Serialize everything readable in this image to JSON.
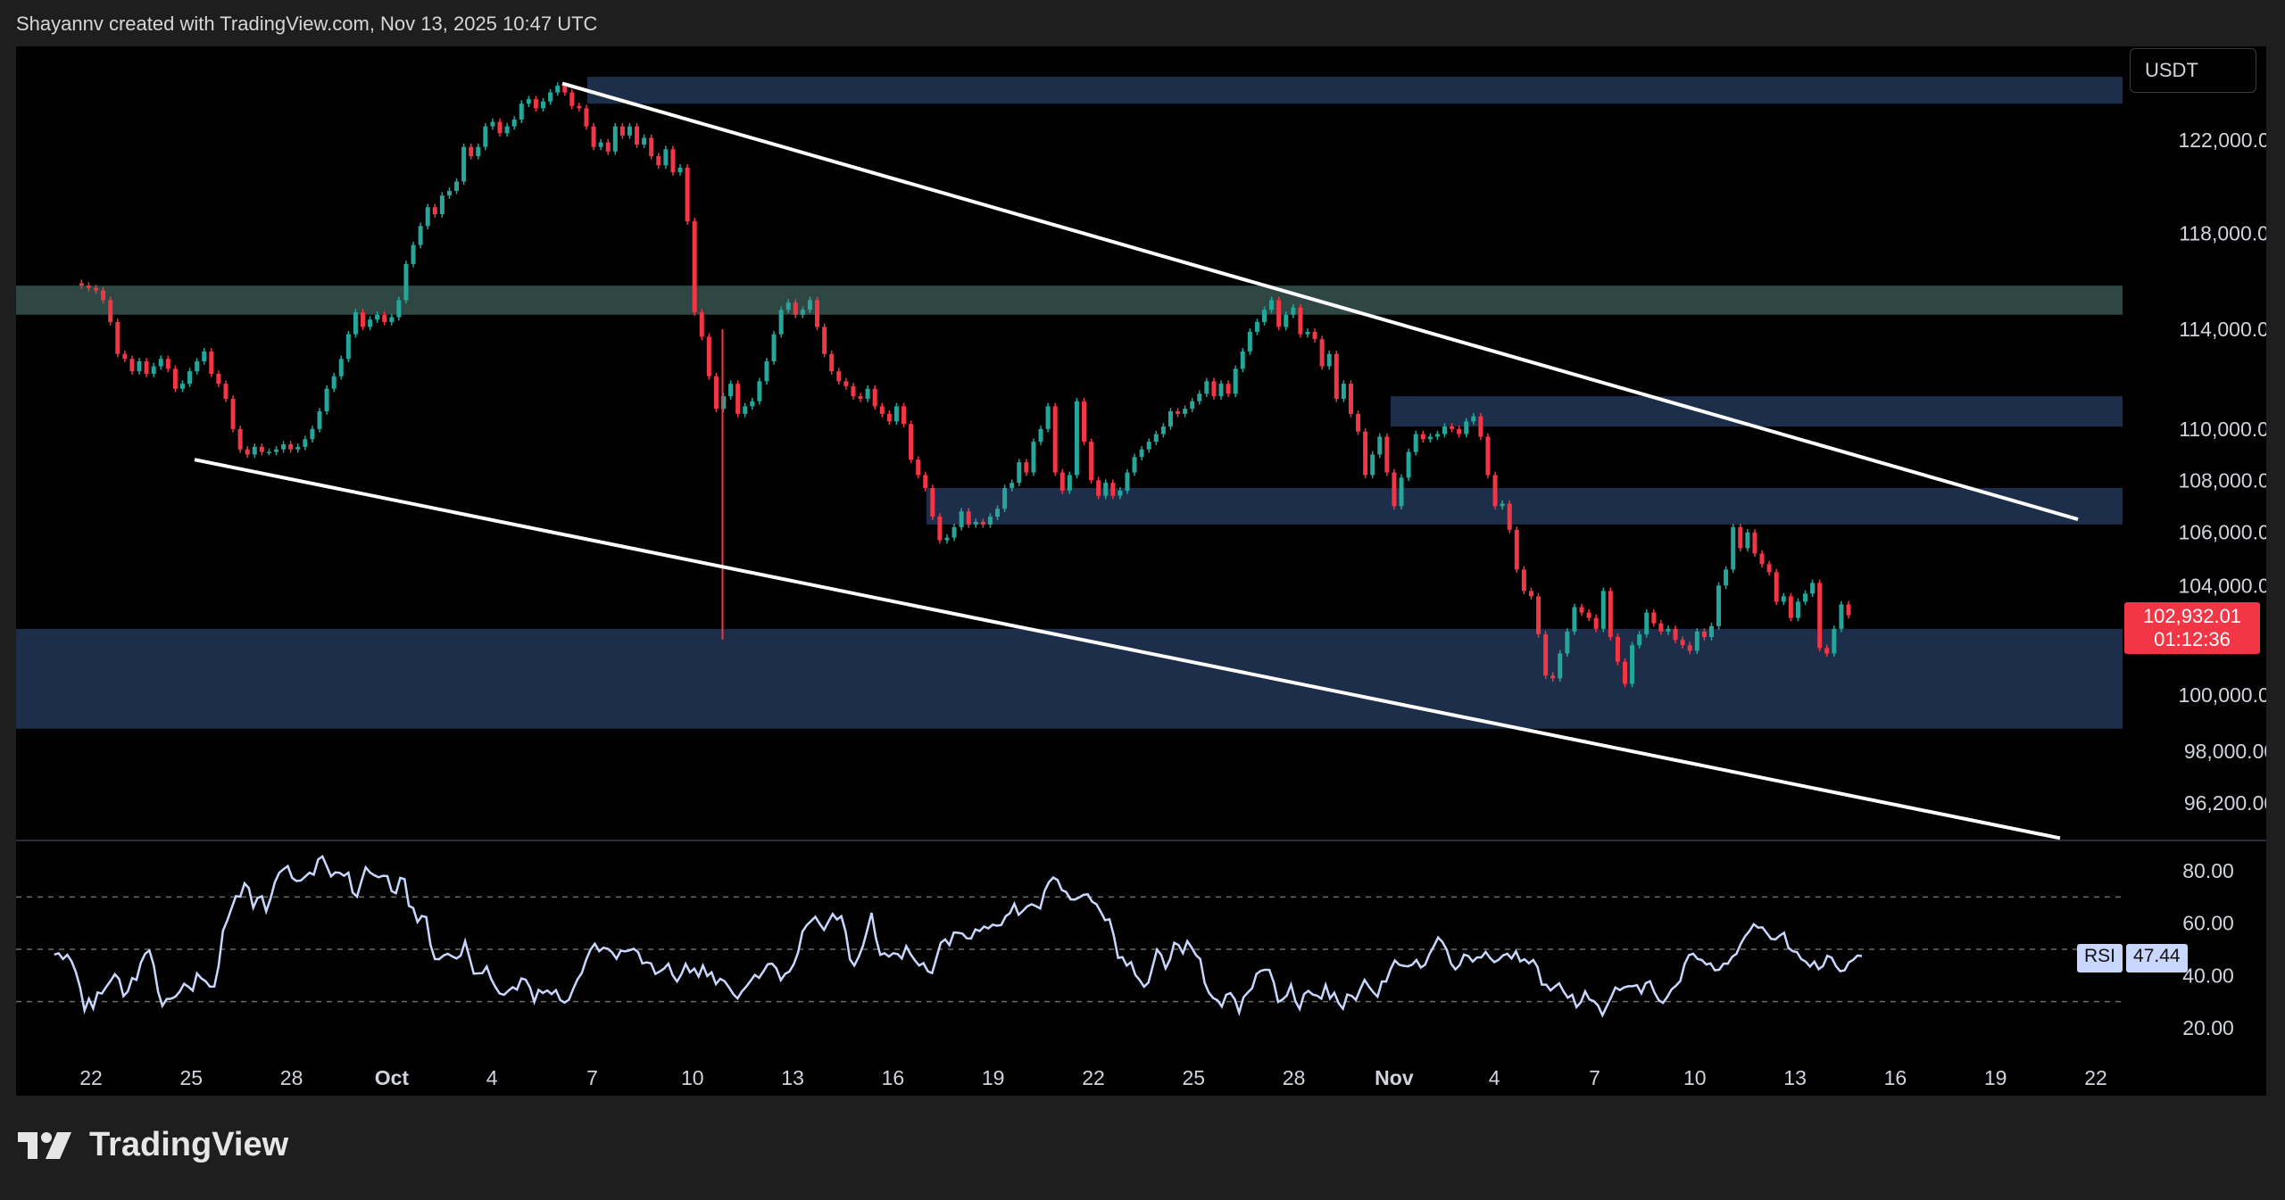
{
  "attribution": "Shayannv created with TradingView.com, Nov 13, 2025 10:47 UTC",
  "brand": {
    "name": "TradingView",
    "logo_icon": "tradingview-logo-icon"
  },
  "currency_label": "USDT",
  "last_price": {
    "value": "102,932.01",
    "countdown": "01:12:36"
  },
  "rsi": {
    "label": "RSI",
    "value": "47.44"
  },
  "colors": {
    "up": "#26a69a",
    "down": "#f23645",
    "zone": "#1c2e4a",
    "zone_top": "#2e4742",
    "trendline": "#ffffff",
    "rsi_line": "#c9d7ff"
  },
  "chart_data": [
    {
      "type": "candlestick",
      "title": "",
      "price_axis": {
        "ylim": [
          95000,
          124500
        ],
        "ticks": [
          "122,000.00",
          "118,000.00",
          "114,000.00",
          "110,000.00",
          "108,000.00",
          "106,000.00",
          "104,000.00",
          "100,000.00",
          "98,000.00",
          "96,200.00"
        ]
      },
      "x_axis": {
        "ticks": [
          "22",
          "25",
          "28",
          "Oct",
          "4",
          "7",
          "10",
          "13",
          "16",
          "19",
          "22",
          "25",
          "28",
          "Nov",
          "4",
          "7",
          "10",
          "13",
          "16",
          "19",
          "22"
        ],
        "month_ticks": [
          "Oct",
          "Nov"
        ]
      },
      "zones": [
        {
          "from": 123600,
          "to": 124800,
          "kind": "supply"
        },
        {
          "from": 114600,
          "to": 115800,
          "kind": "resistance"
        },
        {
          "from": 110100,
          "to": 111300,
          "kind": "supply"
        },
        {
          "from": 106300,
          "to": 107700,
          "kind": "supply"
        },
        {
          "from": 98800,
          "to": 102400,
          "kind": "demand"
        }
      ],
      "trendlines": [
        {
          "from": [
            "Oct 7",
            124500
          ],
          "to": [
            "Nov 20",
            106500
          ],
          "kind": "descending-resistance"
        },
        {
          "from": [
            "Sep 26",
            108800
          ],
          "to": [
            "Nov 20",
            95000
          ],
          "kind": "descending-support"
        }
      ],
      "closes": [
        115900,
        115800,
        115700,
        115600,
        115200,
        114300,
        113000,
        112800,
        112300,
        112700,
        112200,
        112500,
        112800,
        112400,
        111600,
        111800,
        112300,
        112700,
        113100,
        112200,
        111800,
        111200,
        110000,
        109200,
        109000,
        109300,
        109100,
        109100,
        109200,
        109400,
        109200,
        109300,
        109600,
        110000,
        110700,
        111600,
        112100,
        112800,
        113800,
        114700,
        114100,
        114400,
        114600,
        114300,
        114500,
        115200,
        116700,
        117500,
        118300,
        119100,
        118800,
        119600,
        119800,
        120200,
        121700,
        121300,
        121700,
        122600,
        122800,
        122300,
        122600,
        122900,
        123600,
        123800,
        123400,
        123700,
        124100,
        124400,
        124100,
        123500,
        123400,
        122600,
        121700,
        121900,
        121500,
        122600,
        122200,
        122600,
        121800,
        122100,
        121300,
        120900,
        121600,
        120600,
        120800,
        118500,
        114700,
        113700,
        112100,
        110800,
        111300,
        111800,
        110600,
        110900,
        111100,
        111900,
        112700,
        113800,
        114800,
        115100,
        114600,
        114800,
        115200,
        114100,
        113000,
        112300,
        111900,
        111700,
        111300,
        111200,
        111600,
        110900,
        110600,
        110300,
        110900,
        110200,
        108800,
        108200,
        107700,
        106600,
        105700,
        105800,
        106200,
        106800,
        106300,
        106400,
        106300,
        106600,
        106900,
        107700,
        107900,
        108700,
        108300,
        109500,
        110000,
        110900,
        108300,
        107600,
        108200,
        111100,
        109500,
        108000,
        107400,
        107900,
        107400,
        107600,
        108300,
        108900,
        109200,
        109500,
        109800,
        110100,
        110700,
        110600,
        110800,
        111100,
        111400,
        111900,
        111300,
        111800,
        111400,
        112400,
        113100,
        113900,
        114300,
        114800,
        115200,
        114100,
        114600,
        114900,
        113800,
        113900,
        113600,
        112500,
        113000,
        111200,
        111800,
        110600,
        109900,
        108200,
        109000,
        109700,
        108300,
        107000,
        108100,
        109100,
        109800,
        109600,
        109700,
        109800,
        110100,
        110000,
        109800,
        110300,
        110500,
        109700,
        108200,
        107000,
        107100,
        106100,
        104600,
        103800,
        103600,
        102200,
        100700,
        100600,
        101500,
        102300,
        103200,
        103000,
        102800,
        102400,
        103800,
        102100,
        101200,
        100400,
        101800,
        102200,
        103000,
        102600,
        102300,
        102400,
        102000,
        101800,
        101600,
        102300,
        102100,
        102500,
        104000,
        104600,
        106200,
        105400,
        106000,
        105200,
        104800,
        104500,
        103400,
        103600,
        102800,
        103400,
        103700,
        104100,
        101700,
        101500,
        102400,
        103300,
        102900
      ]
    },
    {
      "type": "line",
      "title": "",
      "series": [
        {
          "name": "RSI",
          "values": [
            48.0,
            48.5,
            46.3,
            47.9,
            45.4,
            41.3,
            35.2,
            26.6,
            31.1,
            27.4,
            33.5,
            33.1,
            35.6,
            37.9,
            40.5,
            38.6,
            32.1,
            33.9,
            39.0,
            38.3,
            44.8,
            48.3,
            49.6,
            43.8,
            33.8,
            28.4,
            31.0,
            31.1,
            31.9,
            33.8,
            36.8,
            35.7,
            34.2,
            40.8,
            38.9,
            37.8,
            35.7,
            35.8,
            43.6,
            57.1,
            61.0,
            65.8,
            70.3,
            70.1,
            75.2,
            73.4,
            65.9,
            69.6,
            70.3,
            64.5,
            69.4,
            75.6,
            79.2,
            80.6,
            81.8,
            77.3,
            76.1,
            76.3,
            77.7,
            79.3,
            78.5,
            84.3,
            85.5,
            81.8,
            77.9,
            79.4,
            79.2,
            78.1,
            79.3,
            71.7,
            70.1,
            75.9,
            81.3,
            79.4,
            78.3,
            77.5,
            78.1,
            78.0,
            72.3,
            71.4,
            77.3,
            76.8,
            66.6,
            65.8,
            60.4,
            62.7,
            62.3,
            51.7,
            46.3,
            46.2,
            47.6,
            48.3,
            47.3,
            46.5,
            47.6,
            53.1,
            47.0,
            40.7,
            40.8,
            40.9,
            43.4,
            38.7,
            35.6,
            33.1,
            32.6,
            34.1,
            35.5,
            34.6,
            38.9,
            38.4,
            35.4,
            29.9,
            34.5,
            33.3,
            34.3,
            32.9,
            34.4,
            30.6,
            29.6,
            30.7,
            34.9,
            38.5,
            41.0,
            46.0,
            49.9,
            52.1,
            49.3,
            50.6,
            50.2,
            48.8,
            46.4,
            49.5,
            49.2,
            49.6,
            50.2,
            48.9,
            44.6,
            45.0,
            44.6,
            40.6,
            41.5,
            42.6,
            44.5,
            40.1,
            37.7,
            40.4,
            44.4,
            41.2,
            42.6,
            39.6,
            43.8,
            39.8,
            41.2,
            36.7,
            38.7,
            37.8,
            35.5,
            32.9,
            31.2,
            33.9,
            35.7,
            37.9,
            40.2,
            39.1,
            41.6,
            44.3,
            44.5,
            42.6,
            38.2,
            40.6,
            41.5,
            44.3,
            48.7,
            56.7,
            59.2,
            60.8,
            62.4,
            59.7,
            57.4,
            60.5,
            63.5,
            61.4,
            62.6,
            56.7,
            46.1,
            43.8,
            47.1,
            51.3,
            57.5,
            63.9,
            54.3,
            47.9,
            48.5,
            47.2,
            48.5,
            48.2,
            46.5,
            51.2,
            48.2,
            45.8,
            43.8,
            44.7,
            41.6,
            40.9,
            46.8,
            52.5,
            53.8,
            51.6,
            56.4,
            56.3,
            56.0,
            54.2,
            54.1,
            57.6,
            57.0,
            58.7,
            58.0,
            59.4,
            59.0,
            59.3,
            62.6,
            63.8,
            67.4,
            63.2,
            64.7,
            66.4,
            67.2,
            66.5,
            65.6,
            72.3,
            75.6,
            77.4,
            76.5,
            72.6,
            71.9,
            69.1,
            69.0,
            69.8,
            70.8,
            71.0,
            68.2,
            67.2,
            64.3,
            61.1,
            61.5,
            55.3,
            46.7,
            47.0,
            43.8,
            45.1,
            40.2,
            38.2,
            35.7,
            37.3,
            43.5,
            49.9,
            47.8,
            42.7,
            46.1,
            52.5,
            51.6,
            48.5,
            53.1,
            50.7,
            47.8,
            46.3,
            37.2,
            33.4,
            31.4,
            30.5,
            28.1,
            32.6,
            33.3,
            30.8,
            25.8,
            31.7,
            33.5,
            35.1,
            40.6,
            41.8,
            42.2,
            42.1,
            37.3,
            29.9,
            30.8,
            32.3,
            36.5,
            30.2,
            27.2,
            32.9,
            34.1,
            32.7,
            32.3,
            31.1,
            36.4,
            31.2,
            33.4,
            29.4,
            27.3,
            32.7,
            32.2,
            30.7,
            34.8,
            38.3,
            35.7,
            33.6,
            31.9,
            37.7,
            37.7,
            42.4,
            45.7,
            44.1,
            43.7,
            43.5,
            44.1,
            45.9,
            43.0,
            44.1,
            48.2,
            51.1,
            54.5,
            52.8,
            49.8,
            44.5,
            42.3,
            44.0,
            48.0,
            47.4,
            45.3,
            46.9,
            46.9,
            49.0,
            46.7,
            45.1,
            46.0,
            47.6,
            48.3,
            46.5,
            49.2,
            45.4,
            46.2,
            44.6,
            45.9,
            43.2,
            36.5,
            36.5,
            34.3,
            35.7,
            37.0,
            33.9,
            31.5,
            32.6,
            27.9,
            29.8,
            33.9,
            30.8,
            30.2,
            28.5,
            24.8,
            28.2,
            31.7,
            35.4,
            34.4,
            35.4,
            35.9,
            35.9,
            36.3,
            33.2,
            37.0,
            37.8,
            33.6,
            30.6,
            29.5,
            31.8,
            34.7,
            36.1,
            37.9,
            44.3,
            47.8,
            48.3,
            46.3,
            45.9,
            44.2,
            44.6,
            42.0,
            42.2,
            44.5,
            44.5,
            47.1,
            48.3,
            52.1,
            55.0,
            57.0,
            59.6,
            58.3,
            58.4,
            56.2,
            54.0,
            53.8,
            55.2,
            56.3,
            50.6,
            49.3,
            48.9,
            46.2,
            45.3,
            43.4,
            45.3,
            42.4,
            43.6,
            47.5,
            46.8,
            43.6,
            41.6,
            42.0,
            45.0,
            46.0,
            47.6,
            47.4
          ]
        }
      ],
      "ylim": [
        10,
        90
      ],
      "ticks": [
        "80.00",
        "60.00",
        "40.00",
        "20.00"
      ],
      "levels": [
        70,
        50,
        30
      ]
    }
  ]
}
